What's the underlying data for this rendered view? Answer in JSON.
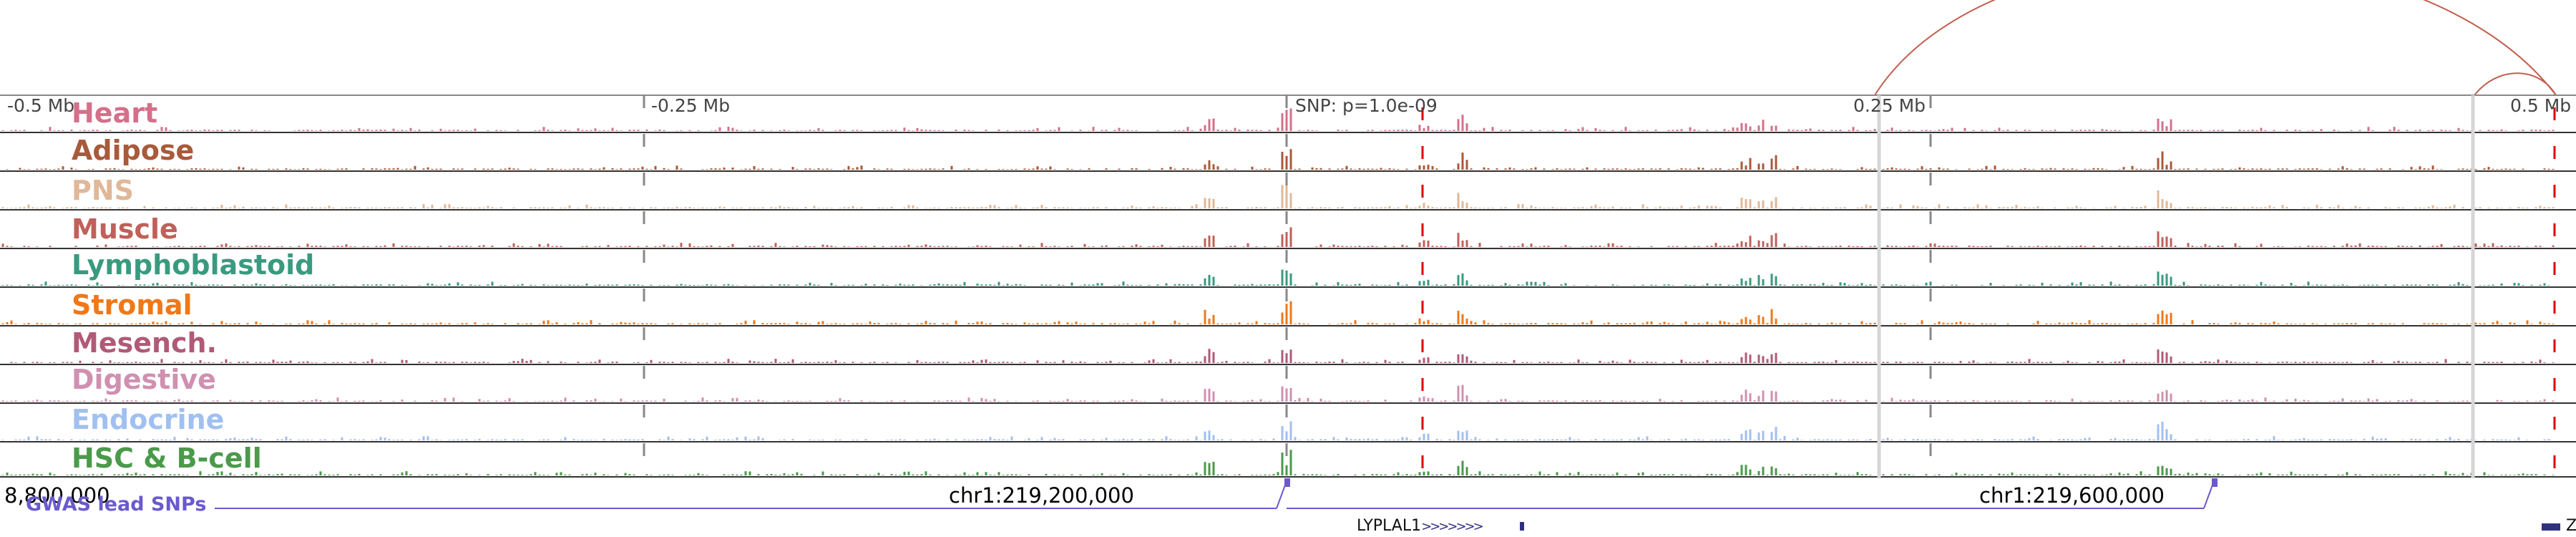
{
  "scale_labels": [
    {
      "text": "-0.5 Mb"
    },
    {
      "text": "-0.25 Mb"
    },
    {
      "text": "SNP: p=1.0e-09"
    },
    {
      "text": "0.25 Mb"
    },
    {
      "text": "0.5 Mb"
    }
  ],
  "tracks": [
    {
      "label": "Heart",
      "color": "#d4708a"
    },
    {
      "label": "Adipose",
      "color": "#a85a3a"
    },
    {
      "label": "PNS",
      "color": "#e0b898"
    },
    {
      "label": "Muscle",
      "color": "#c0605a"
    },
    {
      "label": "Lymphoblastoid",
      "color": "#3a9a80"
    },
    {
      "label": "Stromal",
      "color": "#f07818"
    },
    {
      "label": "Mesench.",
      "color": "#b05a78"
    },
    {
      "label": "Digestive",
      "color": "#d090b0"
    },
    {
      "label": "Endocrine",
      "color": "#a0c0f0"
    },
    {
      "label": "HSC & B-cell",
      "color": "#4a9a4a"
    }
  ],
  "coordinate_labels": [
    {
      "text": "8,800,000"
    },
    {
      "text": "chr1:219,200,000"
    },
    {
      "text": "chr1:219,600,000"
    }
  ],
  "gwas": {
    "label": "GWAS lead SNPs",
    "color": "#6a5acd"
  },
  "genes": {
    "name": "LYPLAL1",
    "strand_glyphs": ">>>>>>>",
    "clipped_name": "ZC"
  },
  "colors": {
    "snp_marker": "#dd0000",
    "loop_arc": "#c06050",
    "gene_color": "#303080"
  }
}
